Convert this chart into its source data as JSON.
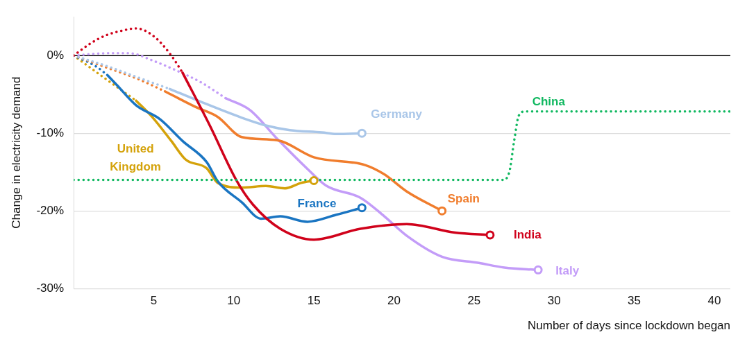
{
  "chart_data": {
    "type": "line",
    "xlabel": "Number of days since lockdown began",
    "ylabel": "Change in electricity demand",
    "xlim": [
      0,
      41
    ],
    "xticks": [
      5,
      10,
      15,
      20,
      25,
      30,
      35,
      40
    ],
    "ylim": [
      -30,
      5
    ],
    "yticks": [
      {
        "value": 0,
        "label": "0%"
      },
      {
        "value": -10,
        "label": "-10%"
      },
      {
        "value": -20,
        "label": "-20%"
      },
      {
        "value": -30,
        "label": "-30%"
      }
    ],
    "grid": "y",
    "legend": false,
    "ref_lines": [
      {
        "axis": "y",
        "value": 0,
        "color": "#000000",
        "line_style": "solid"
      }
    ],
    "series": [
      {
        "type": "scatter",
        "marker": "circle",
        "x": [
          26,
          18,
          23,
          29,
          18,
          15
        ],
        "values": [
          -23.1,
          -10,
          -20,
          -27.6,
          -19.6,
          -16.1
        ],
        "colors": [
          "#d0021b",
          "#a9c6e8",
          "#f07d2d",
          "#c39cf8",
          "#1a75c2",
          "#d4a20a"
        ]
      },
      {
        "name": "China",
        "color": "#10b860",
        "line_style": "dotted",
        "marker": "none",
        "x": [
          0,
          26.8,
          27.2,
          27.5,
          27.8,
          28.2,
          41
        ],
        "values": [
          -16,
          -16,
          -15,
          -11,
          -7.7,
          -7.2,
          -7.2
        ]
      },
      {
        "color": "#d0021b",
        "line_style": "dotted",
        "marker": "none",
        "x": [
          0,
          1,
          2,
          3,
          3.9,
          5,
          6.1,
          6.8
        ],
        "values": [
          0,
          1.5,
          2.6,
          3.2,
          3.5,
          2.5,
          0,
          -2.2
        ]
      },
      {
        "name": "India",
        "color": "#d0021b",
        "line_style": "solid",
        "marker": "none",
        "x": [
          6.8,
          8.5,
          10.2,
          11.2,
          12.9,
          15,
          17.9,
          20.8,
          23.8,
          26
        ],
        "values": [
          -2.2,
          -9,
          -16.2,
          -19.2,
          -22.3,
          -23.7,
          -22.3,
          -21.7,
          -22.8,
          -23.1
        ]
      },
      {
        "color": "#a9c6e8",
        "line_style": "dotted",
        "marker": "none",
        "x": [
          0,
          2,
          4,
          6
        ],
        "values": [
          0,
          -1.3,
          -2.8,
          -4.3
        ]
      },
      {
        "name": "Germany",
        "color": "#a9c6e8",
        "line_style": "solid",
        "marker": "none",
        "x": [
          6,
          8,
          10.5,
          12,
          13.5,
          15.5,
          16.4,
          18
        ],
        "values": [
          -4.3,
          -6,
          -8,
          -9,
          -9.6,
          -9.9,
          -10.1,
          -10
        ]
      },
      {
        "color": "#f07d2d",
        "line_style": "dotted",
        "marker": "none",
        "x": [
          0,
          2,
          4,
          5.7
        ],
        "values": [
          0,
          -1.5,
          -3,
          -4.6
        ]
      },
      {
        "name": "Spain",
        "color": "#f07d2d",
        "line_style": "solid",
        "marker": "none",
        "x": [
          5.7,
          7.6,
          9,
          10.5,
          12.7,
          15,
          18.2,
          19.4,
          20.8,
          23
        ],
        "values": [
          -4.6,
          -6.6,
          -7.9,
          -10.5,
          -10.9,
          -13.1,
          -14.1,
          -15.3,
          -17.5,
          -20
        ]
      },
      {
        "color": "#c39cf8",
        "line_style": "dotted",
        "marker": "none",
        "x": [
          0,
          2,
          3.5,
          5,
          6.5,
          8,
          9.5
        ],
        "values": [
          0,
          0.3,
          0.3,
          -0.7,
          -2,
          -3.5,
          -5.5
        ]
      },
      {
        "name": "Italy",
        "color": "#c39cf8",
        "line_style": "solid",
        "marker": "none",
        "x": [
          9.5,
          11,
          12.7,
          14.6,
          15.8,
          17.9,
          19.4,
          20.8,
          23,
          25.3,
          26.9,
          29
        ],
        "values": [
          -5.5,
          -7,
          -10.7,
          -14.6,
          -16.8,
          -18.3,
          -20.7,
          -23.2,
          -25.9,
          -26.7,
          -27.3,
          -27.6
        ]
      },
      {
        "color": "#1a75c2",
        "line_style": "dotted",
        "marker": "none",
        "x": [
          0,
          1.4,
          2.1
        ],
        "values": [
          0,
          -1.4,
          -2.5
        ]
      },
      {
        "name": "France",
        "color": "#1a75c2",
        "line_style": "solid",
        "marker": "none",
        "x": [
          2.1,
          2.7,
          3.9,
          5.4,
          6.8,
          8.3,
          9,
          10.5,
          11.7,
          12.9,
          14.6,
          16.4,
          18
        ],
        "values": [
          -2.5,
          -3.8,
          -6.4,
          -8.2,
          -11,
          -13.7,
          -16.2,
          -18.9,
          -21,
          -20.7,
          -21.4,
          -20.5,
          -19.6
        ]
      },
      {
        "color": "#d4a20a",
        "line_style": "dotted",
        "marker": "none",
        "x": [
          0,
          2,
          3.9
        ],
        "values": [
          0,
          -3,
          -5.8
        ]
      },
      {
        "name": "United Kingdom",
        "color": "#d4a20a",
        "line_style": "solid",
        "marker": "none",
        "x": [
          3.9,
          4.9,
          6.1,
          7,
          8.3,
          9,
          10.5,
          12,
          13.2,
          14.2,
          15
        ],
        "values": [
          -5.8,
          -7.9,
          -11,
          -13.4,
          -14.5,
          -16.4,
          -17,
          -16.8,
          -17.1,
          -16.4,
          -16.1
        ]
      }
    ]
  }
}
